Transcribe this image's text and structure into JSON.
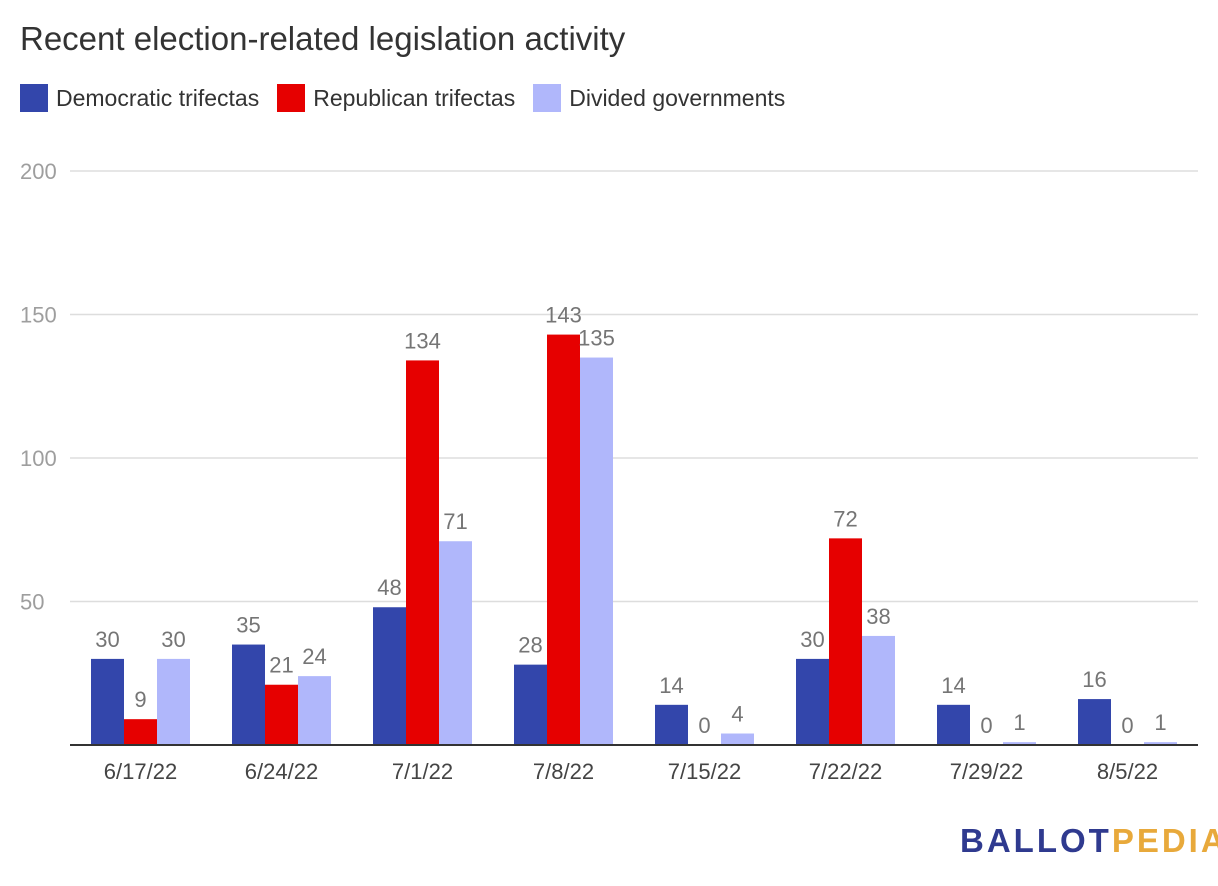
{
  "chart_data": {
    "type": "bar",
    "title": "Recent election-related legislation activity",
    "categories": [
      "6/17/22",
      "6/24/22",
      "7/1/22",
      "7/8/22",
      "7/15/22",
      "7/22/22",
      "7/29/22",
      "8/5/22"
    ],
    "series": [
      {
        "name": "Democratic trifectas",
        "color": "#3346ab",
        "values": [
          30,
          35,
          48,
          28,
          14,
          30,
          14,
          16
        ]
      },
      {
        "name": "Republican trifectas",
        "color": "#e60000",
        "values": [
          9,
          21,
          134,
          143,
          0,
          72,
          0,
          0
        ]
      },
      {
        "name": "Divided governments",
        "color": "#b0b7fb",
        "values": [
          30,
          24,
          71,
          135,
          4,
          38,
          1,
          1
        ]
      }
    ],
    "y_ticks": [
      50,
      100,
      150,
      200
    ],
    "ylim": [
      0,
      200
    ],
    "grid": true,
    "legend_position": "top-left",
    "data_labels": true
  },
  "logo": {
    "part1": "BALLOT",
    "part2": "PEDIA"
  }
}
